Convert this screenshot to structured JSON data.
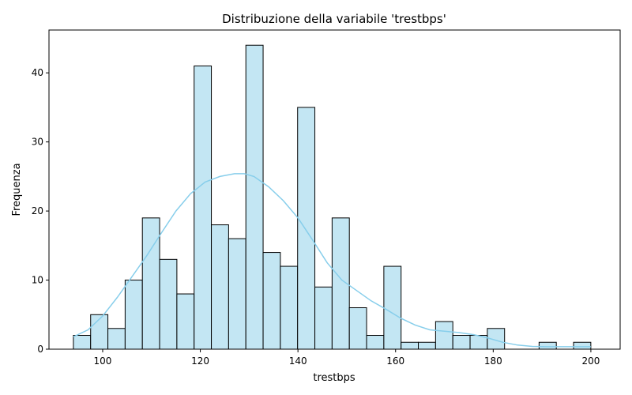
{
  "chart_data": {
    "type": "histogram",
    "title": "Distribuzione della variabile 'trestbps'",
    "xlabel": "trestbps",
    "ylabel": "Frequenza",
    "xlim": [
      89,
      206
    ],
    "ylim": [
      0,
      46.2
    ],
    "xticks": [
      100,
      120,
      140,
      160,
      180,
      200
    ],
    "yticks": [
      0,
      10,
      20,
      30,
      40
    ],
    "bar_color": "#c3e6f3",
    "edge_color": "#000000",
    "kde_color": "#87ceeb",
    "bins": {
      "start": 94,
      "width": 3.533,
      "counts": [
        2,
        5,
        3,
        10,
        19,
        13,
        8,
        41,
        18,
        16,
        44,
        14,
        12,
        35,
        9,
        19,
        6,
        2,
        12,
        1,
        1,
        4,
        2,
        2,
        3,
        0,
        0,
        1,
        0,
        1
      ]
    },
    "kde": {
      "x": [
        94,
        97,
        100,
        103,
        106,
        109,
        112,
        115,
        118,
        121,
        124,
        127,
        129,
        131,
        134,
        137,
        140,
        143,
        146,
        149,
        152,
        155,
        158,
        161,
        164,
        167,
        170,
        173,
        176,
        179,
        182,
        185,
        188,
        191,
        194,
        197,
        200
      ],
      "y": [
        1.8,
        2.8,
        4.8,
        7.5,
        10.5,
        13.5,
        16.8,
        20.0,
        22.5,
        24.2,
        25.0,
        25.4,
        25.4,
        25.0,
        23.5,
        21.5,
        19.0,
        15.8,
        12.5,
        10.0,
        8.5,
        7.0,
        5.8,
        4.5,
        3.5,
        2.8,
        2.6,
        2.4,
        2.1,
        1.6,
        1.0,
        0.6,
        0.4,
        0.35,
        0.35,
        0.35,
        0.35
      ]
    }
  }
}
